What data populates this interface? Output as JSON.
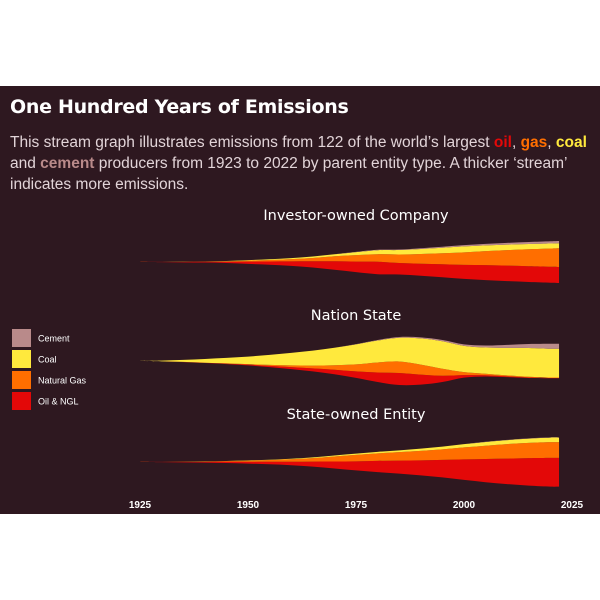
{
  "header": {
    "title": "One Hundred  Years of Emissions",
    "subtitle": {
      "t1": "This stream graph illustrates emissions from 122 of the world’s largest ",
      "oil": "oil",
      "sep": ", ",
      "gas": "gas",
      "sep2": ", ",
      "coal": "coal",
      "t2": " and ",
      "cement": "cement",
      "t3": " producers from 1923 to 2022 by parent entity type. A thicker ‘stream’ indicates more emissions."
    }
  },
  "colors": {
    "background": "#2e1820",
    "Cement": "#b98a8a",
    "Coal": "#ffe93d",
    "Natural Gas": "#ff6e00",
    "Oil & NGL": "#e30808"
  },
  "chart_data": {
    "type": "area",
    "subtype": "streamgraph",
    "x_ticks": [
      1925,
      1950,
      1975,
      2000,
      2025
    ],
    "xlim": [
      1925,
      2025
    ],
    "legend": {
      "placement": "left",
      "entries": [
        "Cement",
        "Coal",
        "Natural Gas",
        "Oil & NGL"
      ]
    },
    "stack_order": [
      "Oil & NGL",
      "Natural Gas",
      "Coal",
      "Cement"
    ],
    "years": [
      1925,
      1930,
      1935,
      1940,
      1945,
      1950,
      1955,
      1960,
      1965,
      1970,
      1975,
      1980,
      1985,
      1990,
      1995,
      2000,
      2005,
      2010,
      2015,
      2020,
      2022
    ],
    "panels": [
      {
        "title": "Investor-owned Company",
        "series": [
          {
            "name": "Oil & NGL",
            "values": [
              0.05,
              0.1,
              0.2,
              0.3,
              0.5,
              0.9,
              1.3,
              1.8,
              2.5,
              3.4,
              4.2,
              5,
              4.6,
              4.8,
              5.2,
              5.6,
              6,
              6.2,
              6.3,
              6.4,
              6.4
            ]
          },
          {
            "name": "Natural Gas",
            "values": [
              0,
              0.02,
              0.05,
              0.1,
              0.2,
              0.4,
              0.6,
              0.9,
              1.3,
              2,
              2.6,
              3,
              3.4,
              3.9,
              4.4,
              5,
              5.6,
              6.2,
              6.8,
              7.3,
              7.5
            ]
          },
          {
            "name": "Coal",
            "values": [
              0,
              0,
              0.02,
              0.05,
              0.1,
              0.2,
              0.3,
              0.4,
              0.6,
              0.8,
              1.2,
              1.6,
              1.8,
              2,
              2.2,
              2.4,
              2.3,
              2.2,
              2.1,
              2,
              2
            ]
          },
          {
            "name": "Cement",
            "values": [
              0,
              0,
              0,
              0,
              0,
              0,
              0,
              0,
              0.02,
              0.05,
              0.1,
              0.15,
              0.2,
              0.3,
              0.4,
              0.5,
              0.6,
              0.7,
              0.8,
              0.9,
              0.9
            ]
          }
        ]
      },
      {
        "title": "Nation State",
        "series": [
          {
            "name": "Oil & NGL",
            "values": [
              0,
              0,
              0.05,
              0.1,
              0.2,
              0.3,
              0.5,
              0.8,
              1.2,
              1.8,
              2.6,
              3.8,
              4.8,
              4,
              2.5,
              1,
              0.5,
              0.3,
              0.2,
              0.1,
              0.1
            ]
          },
          {
            "name": "Natural Gas",
            "values": [
              0,
              0,
              0.02,
              0.05,
              0.1,
              0.2,
              0.4,
              0.7,
              1.1,
              1.8,
              2.8,
              4,
              4.6,
              4,
              2.8,
              1.2,
              0.6,
              0.4,
              0.3,
              0.2,
              0.2
            ]
          },
          {
            "name": "Coal",
            "values": [
              0.05,
              0.3,
              0.8,
              1.5,
              2.2,
              3,
              4,
              5,
              6,
              7,
              8,
              8.8,
              9.5,
              10.5,
              11,
              10.5,
              10.5,
              11,
              11.5,
              11.5,
              11.5
            ]
          },
          {
            "name": "Cement",
            "values": [
              0,
              0,
              0,
              0,
              0,
              0,
              0,
              0,
              0,
              0,
              0.1,
              0.2,
              0.3,
              0.4,
              0.5,
              0.6,
              0.8,
              1.2,
              1.6,
              2,
              2
            ]
          }
        ]
      },
      {
        "title": "State-owned Entity",
        "series": [
          {
            "name": "Oil & NGL",
            "values": [
              0.05,
              0.1,
              0.2,
              0.3,
              0.5,
              0.7,
              1,
              1.4,
              2,
              2.8,
              3.6,
              4.5,
              5.2,
              6,
              7,
              8.2,
              9.3,
              10.2,
              11,
              11.5,
              11.5
            ]
          },
          {
            "name": "Natural Gas",
            "values": [
              0,
              0.03,
              0.08,
              0.15,
              0.3,
              0.5,
              0.7,
              1,
              1.4,
              2,
              2.6,
              3,
              3.4,
              3.8,
              4.2,
              4.8,
              5.3,
              5.8,
              6.1,
              6.3,
              6.3
            ]
          },
          {
            "name": "Coal",
            "values": [
              0,
              0,
              0,
              0.02,
              0.05,
              0.1,
              0.15,
              0.2,
              0.3,
              0.4,
              0.5,
              0.6,
              0.7,
              0.9,
              1.1,
              1.3,
              1.5,
              1.6,
              1.7,
              1.8,
              1.8
            ]
          },
          {
            "name": "Cement",
            "values": [
              0,
              0,
              0,
              0,
              0,
              0,
              0,
              0,
              0,
              0,
              0,
              0,
              0,
              0,
              0,
              0.02,
              0.05,
              0.08,
              0.1,
              0.1,
              0.1
            ]
          }
        ]
      }
    ]
  }
}
